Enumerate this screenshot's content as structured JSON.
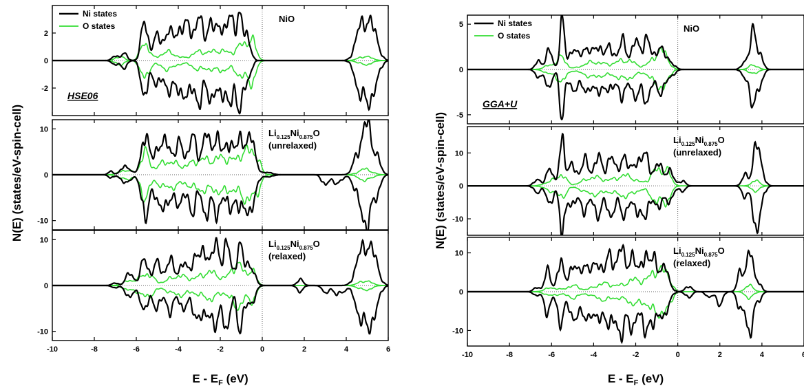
{
  "chart_data": [
    {
      "type": "line",
      "method_label": "HSE06",
      "xlabel": "E - E",
      "xlabel_sub": "F",
      "xlabel_unit": " (eV)",
      "ylabel": "N(E) (states/eV-spin-cell)",
      "xlim": [
        -10,
        6
      ],
      "xticks": [
        "-10",
        "-8",
        "-6",
        "-4",
        "-2",
        "0",
        "2",
        "4",
        "6"
      ],
      "fermi_level": 0,
      "legend": {
        "position": "top-left",
        "entries": [
          {
            "name": "Ni states",
            "color": "#000000"
          },
          {
            "name": "O states",
            "color": "#33dd33"
          }
        ]
      },
      "panels": [
        {
          "label_line1": "NiO",
          "label_line2": "",
          "ylim": [
            -4,
            4
          ],
          "yticks": [
            -2,
            0,
            2
          ],
          "ytick_labels": [
            "-2",
            "0",
            "2"
          ],
          "ni_peaks": [
            [
              -7.0,
              0.3,
              0.15
            ],
            [
              -6.6,
              0.5,
              0.15
            ],
            [
              -5.6,
              2.8,
              0.16
            ],
            [
              -5.0,
              1.6,
              0.2
            ],
            [
              -4.5,
              1.8,
              0.2
            ],
            [
              -4.0,
              2.2,
              0.2
            ],
            [
              -3.5,
              2.5,
              0.2
            ],
            [
              -3.0,
              2.7,
              0.18
            ],
            [
              -2.5,
              2.6,
              0.18
            ],
            [
              -2.0,
              2.8,
              0.18
            ],
            [
              -1.5,
              2.9,
              0.18
            ],
            [
              -1.1,
              3.0,
              0.15
            ],
            [
              -0.7,
              1.8,
              0.15
            ],
            [
              4.6,
              1.8,
              0.22
            ],
            [
              5.0,
              2.6,
              0.2
            ],
            [
              5.4,
              1.5,
              0.2
            ]
          ],
          "o_peaks": [
            [
              -6.8,
              0.3,
              0.2
            ],
            [
              -5.6,
              1.3,
              0.2
            ],
            [
              -4.5,
              0.6,
              0.4
            ],
            [
              -3.0,
              0.6,
              0.4
            ],
            [
              -2.0,
              0.7,
              0.4
            ],
            [
              -1.0,
              1.0,
              0.3
            ],
            [
              -0.5,
              1.3,
              0.2
            ],
            [
              4.9,
              0.3,
              0.3
            ]
          ]
        },
        {
          "label_line1": "Li",
          "label_sub1": "0.125",
          "label_mid": "Ni",
          "label_sub2": "0.875",
          "label_end": "O",
          "label_line2": "(unrelaxed)",
          "ylim": [
            -12,
            12
          ],
          "yticks": [
            -10,
            0,
            10
          ],
          "ytick_labels": [
            "-10",
            "0",
            "10"
          ],
          "ni_peaks": [
            [
              -7.2,
              0.8,
              0.12
            ],
            [
              -6.5,
              2.0,
              0.2
            ],
            [
              -5.6,
              8.5,
              0.18
            ],
            [
              -5.0,
              6.0,
              0.2
            ],
            [
              -4.5,
              7.0,
              0.2
            ],
            [
              -3.9,
              6.5,
              0.2
            ],
            [
              -3.3,
              7.5,
              0.2
            ],
            [
              -2.7,
              8.0,
              0.18
            ],
            [
              -2.2,
              8.5,
              0.18
            ],
            [
              -1.6,
              7.8,
              0.2
            ],
            [
              -1.0,
              8.2,
              0.2
            ],
            [
              -0.5,
              7.0,
              0.2
            ],
            [
              0.3,
              0.5,
              0.2
            ],
            [
              4.6,
              5.0,
              0.22
            ],
            [
              5.0,
              9.0,
              0.2
            ],
            [
              5.4,
              4.0,
              0.2
            ]
          ],
          "o_peaks": [
            [
              -6.5,
              1.0,
              0.3
            ],
            [
              -5.6,
              4.5,
              0.2
            ],
            [
              -4.5,
              2.8,
              0.5
            ],
            [
              -3.0,
              3.0,
              0.5
            ],
            [
              -1.8,
              3.5,
              0.5
            ],
            [
              -0.8,
              4.5,
              0.3
            ],
            [
              -0.3,
              3.5,
              0.2
            ],
            [
              4.9,
              1.2,
              0.3
            ]
          ],
          "dn_extra_ni": [
            [
              3.0,
              2.5,
              0.15
            ],
            [
              3.6,
              2.0,
              0.2
            ]
          ]
        },
        {
          "label_line1": "Li",
          "label_sub1": "0.125",
          "label_mid": "Ni",
          "label_sub2": "0.875",
          "label_end": "O",
          "label_line2": "(relaxed)",
          "ylim": [
            -12,
            12
          ],
          "yticks": [
            -10,
            0,
            10
          ],
          "ytick_labels": [
            "-10",
            "0",
            "10"
          ],
          "ni_peaks": [
            [
              -7.0,
              0.5,
              0.15
            ],
            [
              -6.3,
              2.5,
              0.2
            ],
            [
              -5.6,
              5.5,
              0.18
            ],
            [
              -5.0,
              4.5,
              0.2
            ],
            [
              -4.4,
              5.0,
              0.2
            ],
            [
              -3.8,
              4.5,
              0.2
            ],
            [
              -3.2,
              6.5,
              0.2
            ],
            [
              -2.7,
              7.5,
              0.18
            ],
            [
              -2.2,
              8.0,
              0.18
            ],
            [
              -1.7,
              8.5,
              0.18
            ],
            [
              -1.1,
              8.8,
              0.15
            ],
            [
              -0.6,
              5.0,
              0.2
            ],
            [
              1.8,
              1.2,
              0.15
            ],
            [
              4.6,
              5.0,
              0.22
            ],
            [
              5.0,
              8.0,
              0.2
            ],
            [
              5.4,
              4.5,
              0.2
            ]
          ],
          "o_peaks": [
            [
              -6.3,
              1.0,
              0.3
            ],
            [
              -5.5,
              2.5,
              0.3
            ],
            [
              -4.0,
              2.0,
              0.5
            ],
            [
              -2.5,
              2.8,
              0.5
            ],
            [
              -1.2,
              4.5,
              0.3
            ],
            [
              -0.5,
              3.0,
              0.2
            ],
            [
              4.9,
              1.0,
              0.3
            ]
          ],
          "dn_extra_ni": [
            [
              3.0,
              1.5,
              0.15
            ],
            [
              3.5,
              2.0,
              0.15
            ],
            [
              3.9,
              1.2,
              0.15
            ]
          ]
        }
      ]
    },
    {
      "type": "line",
      "method_label": "GGA+U",
      "xlabel": "E - E",
      "xlabel_sub": "F",
      "xlabel_unit": " (eV)",
      "ylabel": "N(E) (states/eV-spin-cell)",
      "xlim": [
        -10,
        6
      ],
      "xticks": [
        "-10",
        "-8",
        "-6",
        "-4",
        "-2",
        "0",
        "2",
        "4",
        "6"
      ],
      "fermi_level": 0,
      "legend": {
        "position": "top-left",
        "entries": [
          {
            "name": "Ni states",
            "color": "#000000"
          },
          {
            "name": "O states",
            "color": "#33dd33"
          }
        ]
      },
      "panels": [
        {
          "label_line1": "NiO",
          "label_line2": "",
          "ylim": [
            -6,
            6
          ],
          "yticks": [
            -5,
            0,
            5
          ],
          "ytick_labels": [
            "-5",
            "0",
            "5"
          ],
          "ni_peaks": [
            [
              -6.6,
              1.0,
              0.15
            ],
            [
              -6.1,
              2.0,
              0.15
            ],
            [
              -5.5,
              4.7,
              0.12
            ],
            [
              -5.0,
              2.2,
              0.2
            ],
            [
              -4.4,
              2.5,
              0.2
            ],
            [
              -3.8,
              2.8,
              0.2
            ],
            [
              -3.2,
              2.5,
              0.2
            ],
            [
              -2.6,
              3.0,
              0.18
            ],
            [
              -2.0,
              2.8,
              0.2
            ],
            [
              -1.5,
              3.2,
              0.18
            ],
            [
              -0.9,
              2.5,
              0.2
            ],
            [
              -0.4,
              1.0,
              0.2
            ],
            [
              3.2,
              1.0,
              0.15
            ],
            [
              3.6,
              3.8,
              0.15
            ],
            [
              3.9,
              1.5,
              0.15
            ]
          ],
          "o_peaks": [
            [
              -6.0,
              0.5,
              0.3
            ],
            [
              -5.5,
              1.2,
              0.2
            ],
            [
              -4.0,
              0.8,
              0.5
            ],
            [
              -2.5,
              1.0,
              0.5
            ],
            [
              -1.0,
              1.5,
              0.3
            ],
            [
              -0.6,
              1.2,
              0.2
            ],
            [
              3.6,
              0.5,
              0.2
            ]
          ]
        },
        {
          "label_line1": "Li",
          "label_sub1": "0.125",
          "label_mid": "Ni",
          "label_sub2": "0.875",
          "label_end": "O",
          "label_line2": "(unrelaxed)",
          "ylim": [
            -15,
            18
          ],
          "yticks": [
            -10,
            0,
            10
          ],
          "ytick_labels": [
            "-10",
            "0",
            "10"
          ],
          "ni_peaks": [
            [
              -6.7,
              2.0,
              0.15
            ],
            [
              -6.1,
              6.0,
              0.15
            ],
            [
              -5.5,
              16.0,
              0.12
            ],
            [
              -5.0,
              6.0,
              0.2
            ],
            [
              -4.4,
              7.0,
              0.2
            ],
            [
              -3.8,
              8.0,
              0.2
            ],
            [
              -3.2,
              8.5,
              0.2
            ],
            [
              -2.6,
              9.0,
              0.18
            ],
            [
              -2.0,
              8.0,
              0.2
            ],
            [
              -1.5,
              9.0,
              0.18
            ],
            [
              -0.9,
              6.0,
              0.2
            ],
            [
              -0.4,
              4.0,
              0.2
            ],
            [
              0.2,
              1.5,
              0.15
            ],
            [
              3.2,
              3.0,
              0.15
            ],
            [
              3.7,
              12.0,
              0.15
            ],
            [
              4.0,
              4.0,
              0.15
            ]
          ],
          "o_peaks": [
            [
              -6.0,
              1.5,
              0.3
            ],
            [
              -5.5,
              3.0,
              0.2
            ],
            [
              -4.0,
              2.5,
              0.5
            ],
            [
              -2.5,
              3.0,
              0.5
            ],
            [
              -1.0,
              4.5,
              0.3
            ],
            [
              -0.5,
              3.5,
              0.2
            ],
            [
              3.7,
              1.5,
              0.2
            ]
          ]
        },
        {
          "label_line1": "Li",
          "label_sub1": "0.125",
          "label_mid": "Ni",
          "label_sub2": "0.875",
          "label_end": "O",
          "label_line2": "(relaxed)",
          "ylim": [
            -14,
            14
          ],
          "yticks": [
            -10,
            0,
            10
          ],
          "ytick_labels": [
            "-10",
            "0",
            "10"
          ],
          "ni_peaks": [
            [
              -6.7,
              1.0,
              0.15
            ],
            [
              -6.2,
              5.0,
              0.15
            ],
            [
              -5.6,
              7.5,
              0.15
            ],
            [
              -5.0,
              7.0,
              0.2
            ],
            [
              -4.4,
              7.5,
              0.2
            ],
            [
              -3.8,
              8.0,
              0.2
            ],
            [
              -3.2,
              9.0,
              0.2
            ],
            [
              -2.7,
              9.5,
              0.18
            ],
            [
              -2.2,
              9.0,
              0.2
            ],
            [
              -1.6,
              10.0,
              0.18
            ],
            [
              -1.1,
              8.5,
              0.18
            ],
            [
              -0.6,
              5.5,
              0.2
            ],
            [
              0.5,
              1.5,
              0.15
            ],
            [
              3.0,
              5.0,
              0.15
            ],
            [
              3.4,
              10.0,
              0.15
            ],
            [
              3.8,
              3.0,
              0.15
            ]
          ],
          "o_peaks": [
            [
              -6.0,
              1.0,
              0.3
            ],
            [
              -5.0,
              1.5,
              0.3
            ],
            [
              -3.5,
              2.0,
              0.5
            ],
            [
              -2.0,
              3.0,
              0.5
            ],
            [
              -1.0,
              5.0,
              0.3
            ],
            [
              -0.5,
              3.5,
              0.2
            ],
            [
              3.4,
              1.5,
              0.2
            ]
          ],
          "dn_extra_ni": [
            [
              1.5,
              1.5,
              0.15
            ],
            [
              2.0,
              3.0,
              0.15
            ]
          ]
        }
      ]
    }
  ]
}
